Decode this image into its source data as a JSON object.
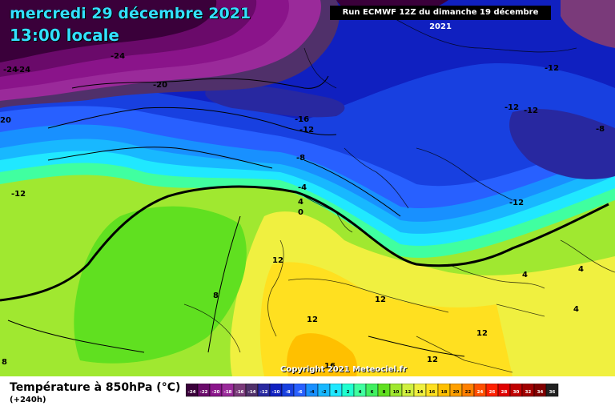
{
  "header": {
    "date": "mercredi 29 décembre 2021",
    "time": "13:00 locale",
    "run": "Run ECMWF 12Z du dimanche 19 décembre 2021"
  },
  "footer": {
    "parameter": "Température à 850hPa (°C)",
    "lead": "(+240h)",
    "copyright": "Copyright 2021 Meteociel.fr"
  },
  "colors": {
    "background": "#ffffff",
    "header_text": "#33e0ff",
    "contour": "#000000",
    "zero_isotherm": "#000000"
  },
  "map_labels": [
    "-24",
    "-24",
    "-24",
    "-20",
    "20",
    "-16",
    "-12",
    "-8",
    "-12",
    "-4",
    "4",
    "0",
    "12",
    "8",
    "12",
    "12",
    "16",
    "12",
    "12",
    "-12",
    "-12",
    "-12",
    "-8",
    "-12",
    "4",
    "4",
    "4",
    "8"
  ],
  "colorbar": {
    "ticks": [
      "-24",
      "-22",
      "-20",
      "-18",
      "-16",
      "-14",
      "-12",
      "-10",
      "-8",
      "-6",
      "-4",
      "-2",
      "0",
      "2",
      "4",
      "6",
      "8",
      "10",
      "12",
      "14",
      "16",
      "18",
      "20",
      "22",
      "24",
      "26",
      "28",
      "30",
      "32",
      "34",
      "36"
    ],
    "colors": [
      "#3a003a",
      "#6a0a6a",
      "#8a148a",
      "#9a2a9a",
      "#7a3a7a",
      "#50306a",
      "#2828a0",
      "#1020c0",
      "#1840e0",
      "#2860ff",
      "#1890ff",
      "#18b8ff",
      "#20e8ff",
      "#20ffd0",
      "#40ffa0",
      "#40f060",
      "#60e020",
      "#a0e830",
      "#d0f040",
      "#f0f040",
      "#ffe020",
      "#ffc000",
      "#ffa000",
      "#ff8000",
      "#ff5000",
      "#ff2000",
      "#e00000",
      "#c00000",
      "#a00000",
      "#800000",
      "#202020"
    ]
  }
}
